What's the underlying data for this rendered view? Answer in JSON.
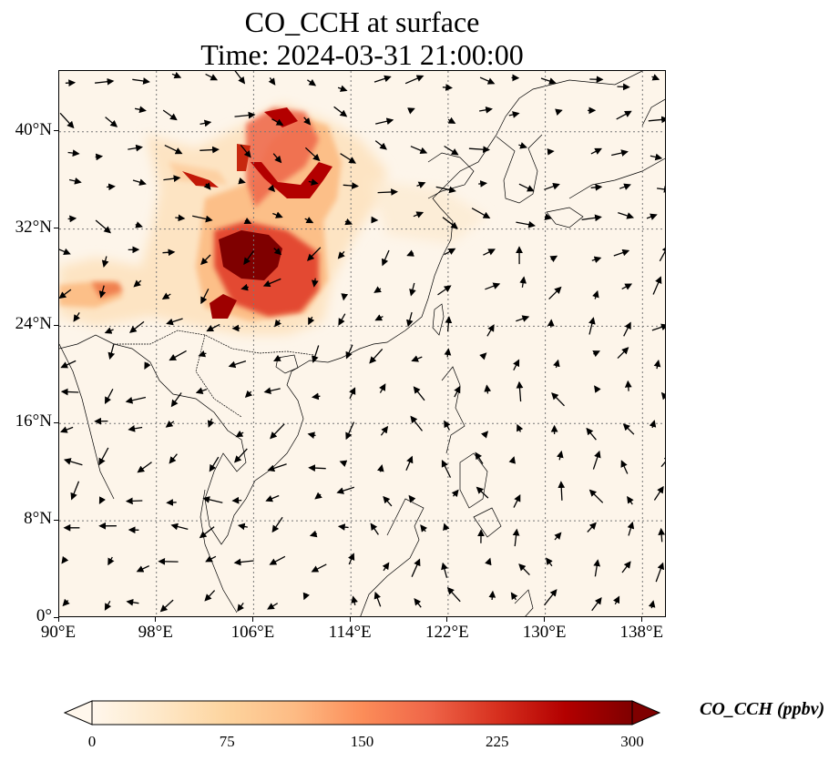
{
  "title": {
    "line1": "CO_CCH at surface",
    "line2": "Time: 2024-03-31 21:00:00"
  },
  "map": {
    "projection": "PlateCarree",
    "lon_range": [
      90,
      140
    ],
    "lat_range": [
      0,
      45
    ],
    "lon_ticks": [
      {
        "value": 90,
        "label": "90°E"
      },
      {
        "value": 98,
        "label": "98°E"
      },
      {
        "value": 106,
        "label": "106°E"
      },
      {
        "value": 114,
        "label": "114°E"
      },
      {
        "value": 122,
        "label": "122°E"
      },
      {
        "value": 130,
        "label": "130°E"
      },
      {
        "value": 138,
        "label": "138°E"
      }
    ],
    "lat_ticks": [
      {
        "value": 0,
        "label": "0°"
      },
      {
        "value": 8,
        "label": "8°N"
      },
      {
        "value": 16,
        "label": "16°N"
      },
      {
        "value": 24,
        "label": "24°N"
      },
      {
        "value": 32,
        "label": "32°N"
      },
      {
        "value": 40,
        "label": "40°N"
      }
    ],
    "gridlines": "dotted",
    "background_color": "#fdf5ea",
    "coastline_color": "#000000",
    "vector_field": "wind arrows"
  },
  "colorbar": {
    "label": "CO_CCH (ppbv)",
    "min": 0,
    "max": 300,
    "ticks": [
      {
        "value": 0,
        "label": "0"
      },
      {
        "value": 75,
        "label": "75"
      },
      {
        "value": 150,
        "label": "150"
      },
      {
        "value": 225,
        "label": "225"
      },
      {
        "value": 300,
        "label": "300"
      }
    ],
    "colormap": "OrRd",
    "extend": "both",
    "colors": [
      "#fff7ec",
      "#fee8c8",
      "#fdd49e",
      "#fdbb84",
      "#fc8d59",
      "#ef6548",
      "#d7301f",
      "#b30000",
      "#7f0000"
    ]
  }
}
